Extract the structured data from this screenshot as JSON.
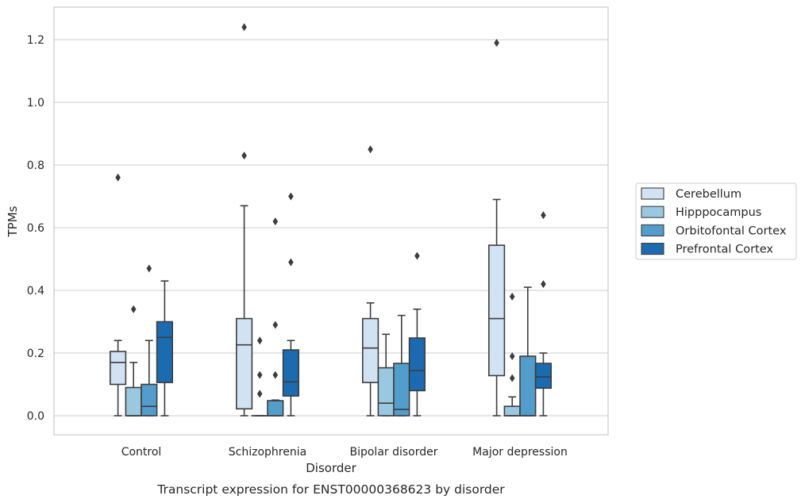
{
  "chart_data": {
    "type": "box",
    "caption": "Transcript expression for ENST00000368623 by disorder",
    "xlabel": "Disorder",
    "ylabel": "TPMs",
    "ylim": [
      -0.06,
      1.3
    ],
    "yticks": [
      0.0,
      0.2,
      0.4,
      0.6,
      0.8,
      1.0,
      1.2
    ],
    "ytick_labels": [
      "0.0",
      "0.2",
      "0.4",
      "0.6",
      "0.8",
      "1.0",
      "1.2"
    ],
    "grid": "horizontal",
    "legend_position": "right",
    "categories": [
      "Control",
      "Schizophrenia",
      "Bipolar disorder",
      "Major depression"
    ],
    "series": [
      {
        "name": "Cerebellum",
        "color": "#d1e2f2",
        "boxes": [
          {
            "whislo": 0.0,
            "q1": 0.1,
            "med": 0.17,
            "q3": 0.205,
            "whishi": 0.24,
            "fliers": [
              0.76
            ]
          },
          {
            "whislo": 0.0,
            "q1": 0.022,
            "med": 0.226,
            "q3": 0.31,
            "whishi": 0.67,
            "fliers": [
              0.83,
              1.24
            ]
          },
          {
            "whislo": 0.0,
            "q1": 0.106,
            "med": 0.216,
            "q3": 0.31,
            "whishi": 0.36,
            "fliers": [
              0.85
            ]
          },
          {
            "whislo": 0.0,
            "q1": 0.128,
            "med": 0.31,
            "q3": 0.544,
            "whishi": 0.69,
            "fliers": [
              1.19
            ]
          }
        ]
      },
      {
        "name": "Hipppocampus",
        "color": "#9ac8e0",
        "boxes": [
          {
            "whislo": 0.0,
            "q1": 0.0,
            "med": 0.0,
            "q3": 0.09,
            "whishi": 0.17,
            "fliers": [
              0.34
            ]
          },
          {
            "whislo": 0.0,
            "q1": 0.0,
            "med": 0.0,
            "q3": 0.0,
            "whishi": 0.0,
            "fliers": [
              0.07,
              0.13,
              0.24
            ]
          },
          {
            "whislo": 0.0,
            "q1": 0.0,
            "med": 0.04,
            "q3": 0.153,
            "whishi": 0.26,
            "fliers": []
          },
          {
            "whislo": 0.0,
            "q1": 0.0,
            "med": 0.0,
            "q3": 0.03,
            "whishi": 0.06,
            "fliers": [
              0.12,
              0.19,
              0.38
            ]
          }
        ]
      },
      {
        "name": "Orbitofontal Cortex",
        "color": "#529dcc",
        "boxes": [
          {
            "whislo": 0.0,
            "q1": 0.0,
            "med": 0.03,
            "q3": 0.1,
            "whishi": 0.24,
            "fliers": [
              0.47
            ]
          },
          {
            "whislo": 0.0,
            "q1": 0.0,
            "med": 0.0,
            "q3": 0.048,
            "whishi": 0.05,
            "fliers": [
              0.13,
              0.29,
              0.62
            ]
          },
          {
            "whislo": 0.0,
            "q1": 0.0,
            "med": 0.02,
            "q3": 0.167,
            "whishi": 0.32,
            "fliers": []
          },
          {
            "whislo": 0.0,
            "q1": 0.0,
            "med": 0.0,
            "q3": 0.19,
            "whishi": 0.41,
            "fliers": []
          }
        ]
      },
      {
        "name": "Prefrontal Cortex",
        "color": "#1c6aaf",
        "boxes": [
          {
            "whislo": 0.0,
            "q1": 0.106,
            "med": 0.25,
            "q3": 0.3,
            "whishi": 0.43,
            "fliers": []
          },
          {
            "whislo": 0.0,
            "q1": 0.063,
            "med": 0.108,
            "q3": 0.21,
            "whishi": 0.24,
            "fliers": [
              0.49,
              0.7
            ]
          },
          {
            "whislo": 0.0,
            "q1": 0.08,
            "med": 0.144,
            "q3": 0.248,
            "whishi": 0.34,
            "fliers": [
              0.51
            ]
          },
          {
            "whislo": 0.0,
            "q1": 0.088,
            "med": 0.124,
            "q3": 0.167,
            "whishi": 0.2,
            "fliers": [
              0.42,
              0.64
            ]
          }
        ]
      }
    ]
  }
}
